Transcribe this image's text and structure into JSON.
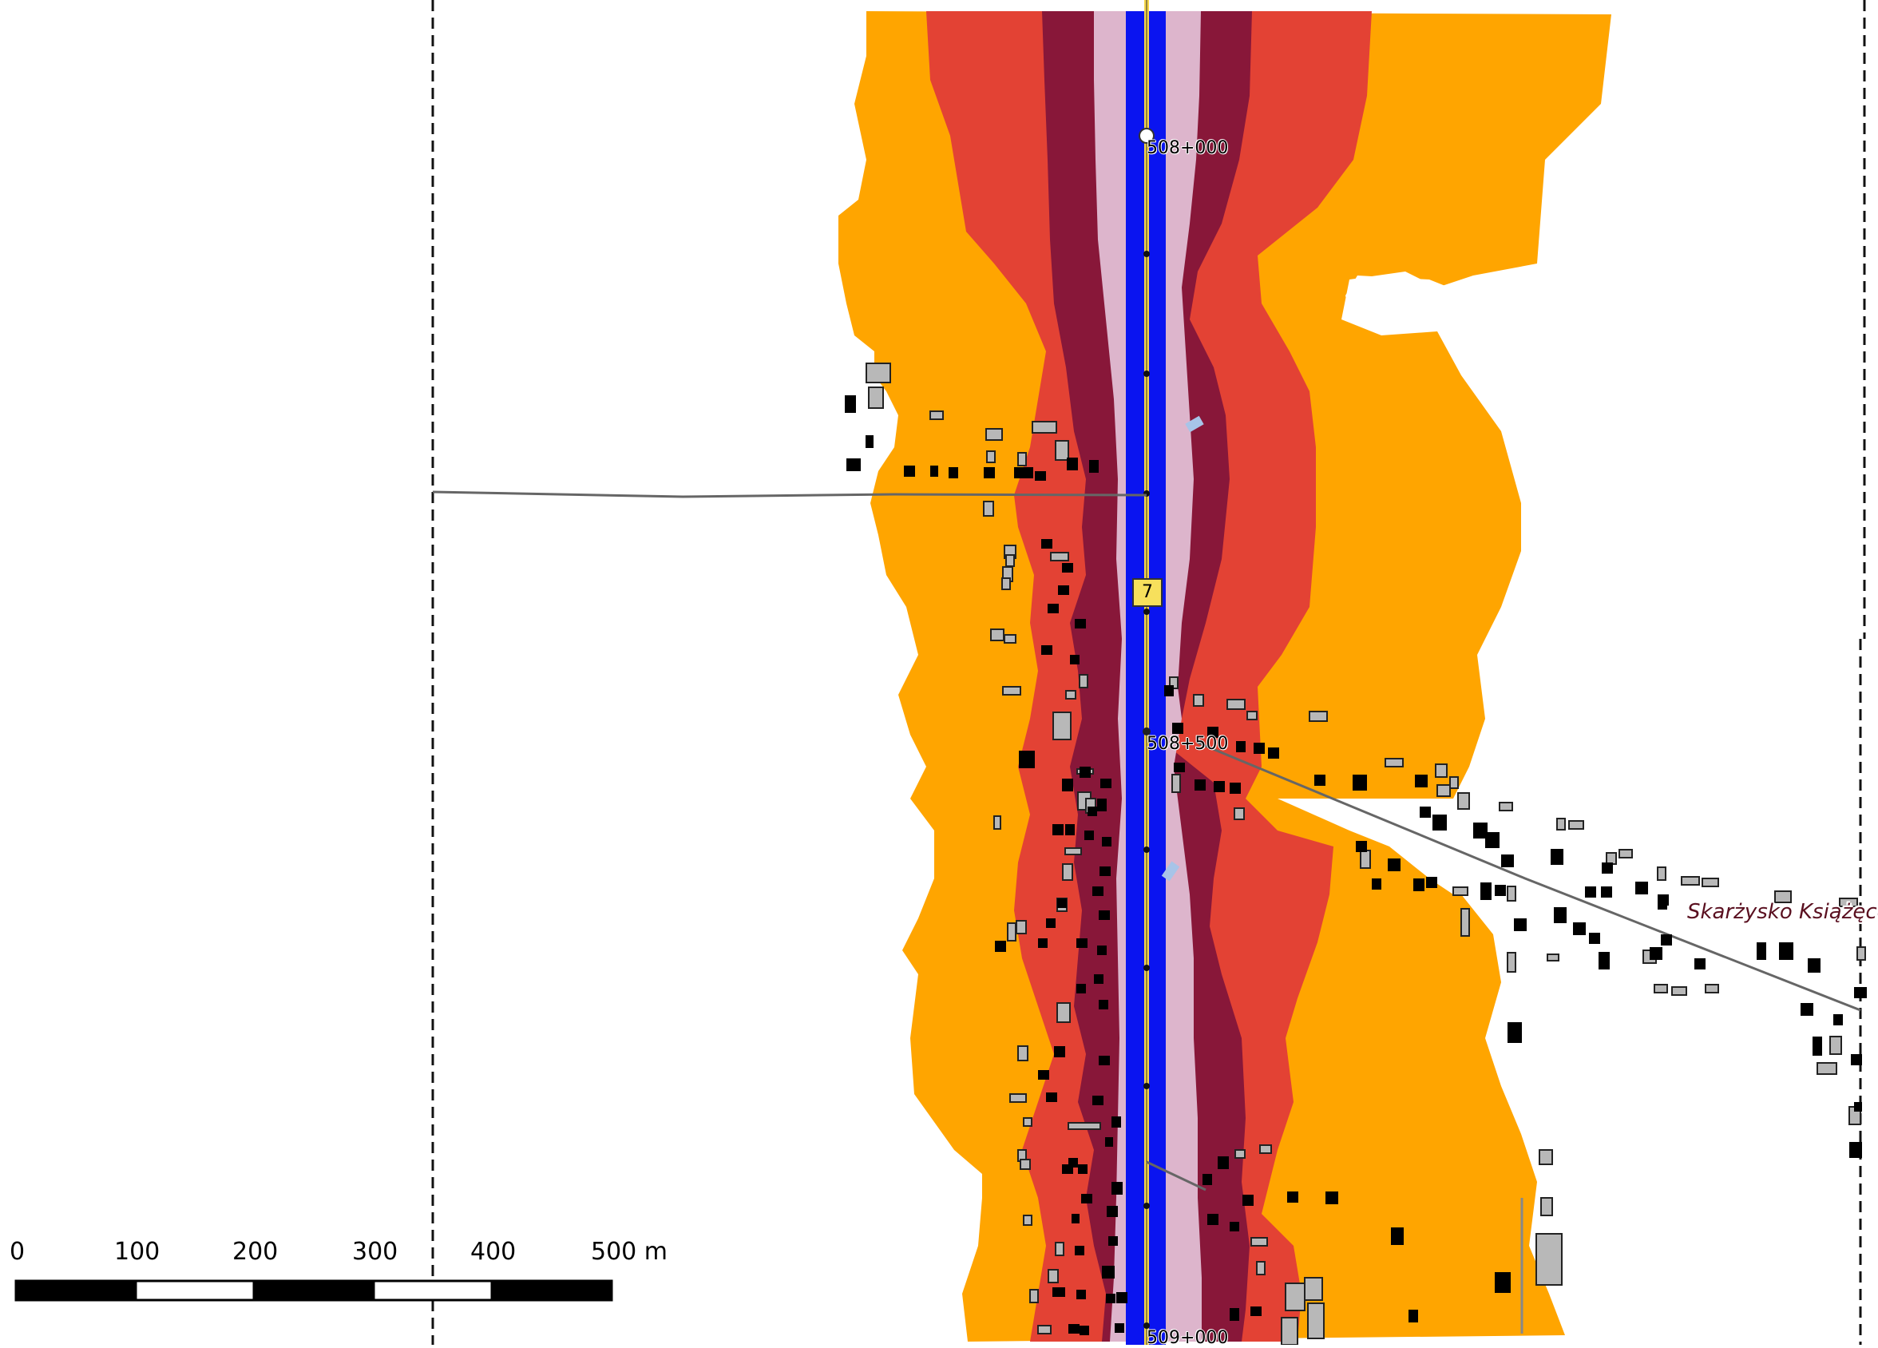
{
  "map": {
    "road_number": "7",
    "chainage": [
      "508+000",
      "508+500",
      "509+000"
    ],
    "place_name": "Skarżysko Książęce",
    "noise_zone_colors": {
      "outer": "#FFA500",
      "middle": "#E34234",
      "inner": "#881739",
      "near": "#DDB5CC",
      "road": "#0A14F0",
      "centerline": "#F5D64A"
    },
    "scale_bar": {
      "ticks": [
        "0",
        "100",
        "200",
        "300",
        "400",
        "500 m"
      ]
    }
  }
}
